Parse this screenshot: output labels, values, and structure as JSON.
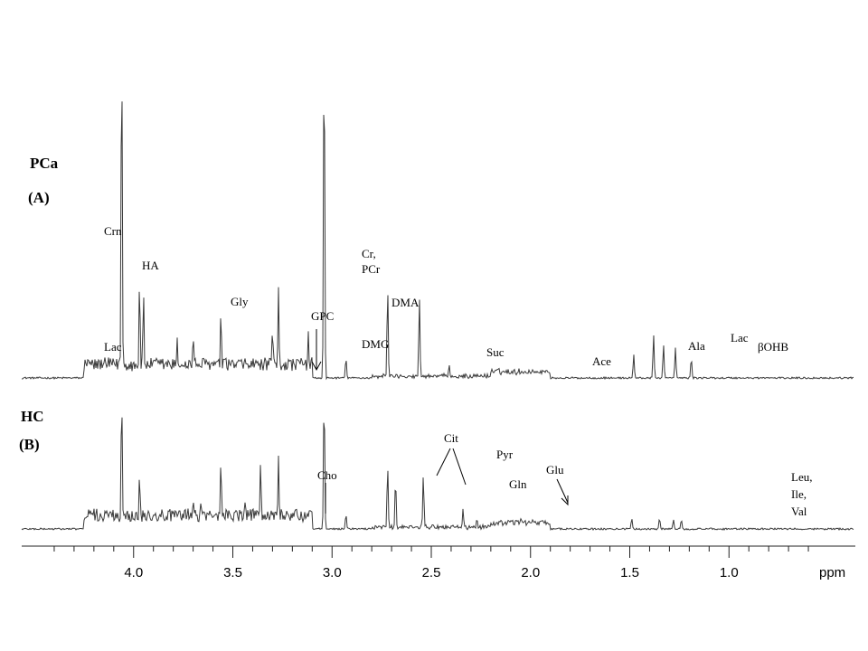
{
  "chart_data": {
    "type": "line",
    "xlabel": "ppm",
    "xlim": [
      4.5,
      0.5
    ],
    "x_reversed": true,
    "x_ticks": [
      4.0,
      3.5,
      3.0,
      2.5,
      2.0,
      1.5,
      1.0
    ],
    "x_tick_labels": [
      "4.0",
      "3.5",
      "3.0",
      "2.5",
      "2.0",
      "1.5",
      "1.0"
    ],
    "line_color": "#3a3a3a",
    "series": [
      {
        "name": "PCa",
        "panel": "(A)",
        "peaks": [
          {
            "ppm": 4.06,
            "h": 1.0
          },
          {
            "ppm": 3.97,
            "h": 0.29
          },
          {
            "ppm": 3.95,
            "h": 0.26
          },
          {
            "ppm": 3.78,
            "h": 0.12
          },
          {
            "ppm": 3.7,
            "h": 0.13
          },
          {
            "ppm": 3.56,
            "h": 0.2
          },
          {
            "ppm": 3.3,
            "h": 0.15
          },
          {
            "ppm": 3.27,
            "h": 0.27
          },
          {
            "ppm": 3.12,
            "h": 0.14
          },
          {
            "ppm": 3.04,
            "h": 1.0
          },
          {
            "ppm": 2.93,
            "h": 0.06
          },
          {
            "ppm": 2.72,
            "h": 0.27
          },
          {
            "ppm": 2.56,
            "h": 0.24
          },
          {
            "ppm": 2.41,
            "h": 0.04
          },
          {
            "ppm": 1.48,
            "h": 0.07
          },
          {
            "ppm": 1.38,
            "h": 0.13
          },
          {
            "ppm": 1.33,
            "h": 0.1
          },
          {
            "ppm": 1.27,
            "h": 0.09
          },
          {
            "ppm": 1.19,
            "h": 0.06
          }
        ]
      },
      {
        "name": "HC",
        "panel": "(B)",
        "peaks": [
          {
            "ppm": 4.06,
            "h": 1.0
          },
          {
            "ppm": 3.97,
            "h": 0.41
          },
          {
            "ppm": 3.7,
            "h": 0.23
          },
          {
            "ppm": 3.66,
            "h": 0.22
          },
          {
            "ppm": 3.56,
            "h": 0.51
          },
          {
            "ppm": 3.44,
            "h": 0.22
          },
          {
            "ppm": 3.36,
            "h": 0.5
          },
          {
            "ppm": 3.27,
            "h": 0.54
          },
          {
            "ppm": 3.19,
            "h": 0.12
          },
          {
            "ppm": 3.04,
            "h": 1.0
          },
          {
            "ppm": 2.93,
            "h": 0.11
          },
          {
            "ppm": 2.72,
            "h": 0.47
          },
          {
            "ppm": 2.68,
            "h": 0.37
          },
          {
            "ppm": 2.54,
            "h": 0.4
          },
          {
            "ppm": 2.34,
            "h": 0.15
          },
          {
            "ppm": 2.27,
            "h": 0.08
          },
          {
            "ppm": 2.05,
            "h": 0.08
          },
          {
            "ppm": 1.49,
            "h": 0.08
          },
          {
            "ppm": 1.35,
            "h": 0.08
          },
          {
            "ppm": 1.28,
            "h": 0.07
          },
          {
            "ppm": 1.24,
            "h": 0.07
          }
        ]
      }
    ],
    "group_labels": [
      "PCa",
      "(A)",
      "HC",
      "(B)"
    ],
    "annotations_A": [
      {
        "text": "Crn",
        "ppm": 4.12,
        "pos": "above"
      },
      {
        "text": "HA",
        "ppm": 3.97,
        "pos": "above"
      },
      {
        "text": "Gly",
        "ppm": 3.57,
        "pos": "above"
      },
      {
        "text": "GPC",
        "ppm": 3.24,
        "pos": "above",
        "arrow": true
      },
      {
        "text": "Cr,",
        "ppm": 3.0,
        "pos": "above"
      },
      {
        "text": "PCr",
        "ppm": 3.0,
        "pos": "above"
      },
      {
        "text": "DMA",
        "ppm": 2.73,
        "pos": "above"
      },
      {
        "text": "DMG",
        "ppm": 2.94,
        "pos": "above"
      },
      {
        "text": "Lac",
        "ppm": 4.13,
        "pos": "above"
      },
      {
        "text": "Suc",
        "ppm": 2.42,
        "pos": "above"
      },
      {
        "text": "Ace",
        "ppm": 1.92,
        "pos": "above"
      },
      {
        "text": "Ala",
        "ppm": 1.49,
        "pos": "above"
      },
      {
        "text": "Lac",
        "ppm": 1.33,
        "pos": "above"
      },
      {
        "text": "βOHB",
        "ppm": 1.17,
        "pos": "above"
      }
    ],
    "annotations_B": [
      {
        "text": "Cit",
        "ppm": 2.61,
        "pos": "above"
      },
      {
        "text": "Pyr",
        "ppm": 2.36,
        "pos": "above"
      },
      {
        "text": "Cho",
        "ppm": 3.18,
        "pos": "above"
      },
      {
        "text": "Gln",
        "ppm": 2.32,
        "pos": "above"
      },
      {
        "text": "Glu",
        "ppm": 2.08,
        "pos": "above",
        "arrow": true
      },
      {
        "text": "Leu,",
        "ppm": 0.98,
        "pos": "above"
      },
      {
        "text": "Ile,",
        "ppm": 0.98,
        "pos": "above"
      },
      {
        "text": "Val",
        "ppm": 0.98,
        "pos": "above"
      }
    ]
  }
}
